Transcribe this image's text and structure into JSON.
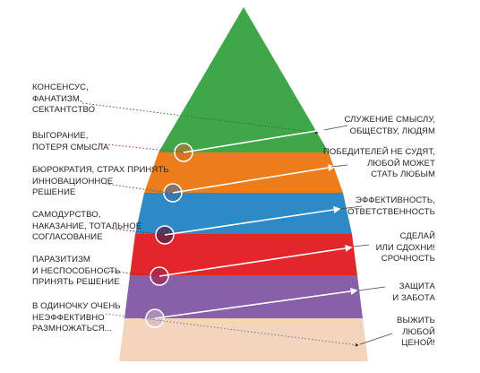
{
  "colors": {
    "level_1": "#3fa64a",
    "level_2": "#ed7d1b",
    "level_3": "#2e8ac7",
    "level_4": "#e3262c",
    "level_5": "#8860aa",
    "level_6": "#f2d5bc",
    "arrow_white": "#ffffff",
    "dotted_left": "#444444"
  },
  "pyramid_levels": [
    {
      "level": 1,
      "name": "green",
      "left_label": [
        "Консенсус,",
        "фанатизм,",
        "сектантство"
      ],
      "right_label": [
        "Служение смыслу,",
        "обществу, людям"
      ]
    },
    {
      "level": 2,
      "name": "orange",
      "left_label": [
        "Выгорание,",
        "потеря смысла"
      ],
      "right_label": [
        "Победителей не судят,",
        "любой может",
        "стать любым"
      ]
    },
    {
      "level": 3,
      "name": "blue",
      "left_label": [
        "Бюрократия, страх принять",
        "инновационное",
        "решение"
      ],
      "right_label": [
        "Эффективность,",
        "ответственность"
      ]
    },
    {
      "level": 4,
      "name": "red",
      "left_label": [
        "Самодурство,",
        "наказание, тотальное",
        "согласование"
      ],
      "right_label": [
        "Сделай",
        "или сдохни!",
        "Срочность"
      ]
    },
    {
      "level": 5,
      "name": "purple",
      "left_label": [
        "Паразитизм",
        "и неспособность",
        "принять решение"
      ],
      "right_label": [
        "Защита",
        "и забота"
      ]
    },
    {
      "level": 6,
      "name": "beige",
      "left_label": [
        "В одиночку очень",
        "неэффективно",
        "размножаться..."
      ],
      "right_label": [
        "Выжить",
        "любой",
        "ценой!"
      ]
    }
  ]
}
